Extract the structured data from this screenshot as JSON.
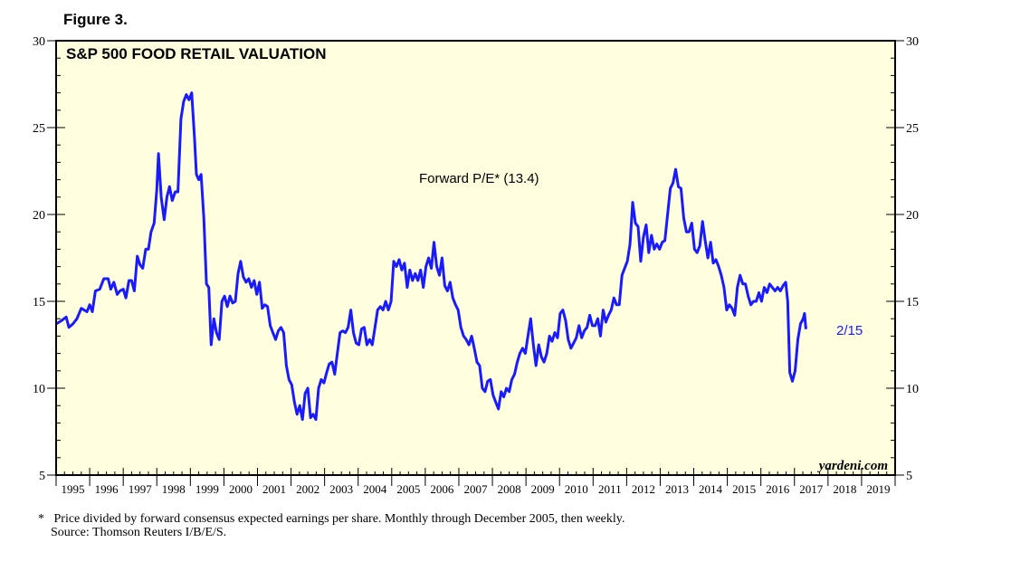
{
  "figure_label": "Figure 3.",
  "footnote": {
    "marker": "*",
    "line1": "Price divided by forward consensus expected earnings per share. Monthly through December 2005, then weekly.",
    "line2": "Source: Thomson Reuters I/B/E/S."
  },
  "chart_data": {
    "type": "line",
    "title": "S&P 500 FOOD RETAIL VALUATION",
    "watermark": "yardeni.com",
    "colors": {
      "plot_background": "#ffffe0",
      "line": "#1a1aff",
      "frame": "#000000"
    },
    "ylim": [
      5,
      30
    ],
    "xlim": [
      1995,
      2020
    ],
    "y_ticks": [
      "5",
      "10",
      "15",
      "20",
      "25",
      "30"
    ],
    "x_tick_labels": [
      "1995",
      "1996",
      "1997",
      "1998",
      "1999",
      "2000",
      "2001",
      "2002",
      "2003",
      "2004",
      "2005",
      "2006",
      "2007",
      "2008",
      "2009",
      "2010",
      "2011",
      "2012",
      "2013",
      "2014",
      "2015",
      "2016",
      "2017",
      "2018",
      "2019"
    ],
    "grid": false,
    "dual_y_axis": true,
    "series": [
      {
        "name": "Forward P/E* (13.4)",
        "end_label": "2/15",
        "points": [
          [
            1995.0,
            13.7
          ],
          [
            1995.17,
            13.9
          ],
          [
            1995.3,
            14.1
          ],
          [
            1995.38,
            13.5
          ],
          [
            1995.5,
            13.7
          ],
          [
            1995.62,
            14.0
          ],
          [
            1995.75,
            14.6
          ],
          [
            1995.92,
            14.4
          ],
          [
            1996.0,
            14.8
          ],
          [
            1996.08,
            14.4
          ],
          [
            1996.17,
            15.6
          ],
          [
            1996.3,
            15.7
          ],
          [
            1996.42,
            16.3
          ],
          [
            1996.55,
            16.3
          ],
          [
            1996.63,
            15.7
          ],
          [
            1996.72,
            16.1
          ],
          [
            1996.82,
            15.4
          ],
          [
            1996.9,
            15.6
          ],
          [
            1997.0,
            15.7
          ],
          [
            1997.08,
            15.2
          ],
          [
            1997.17,
            16.2
          ],
          [
            1997.25,
            16.2
          ],
          [
            1997.33,
            15.6
          ],
          [
            1997.42,
            17.6
          ],
          [
            1997.5,
            17.1
          ],
          [
            1997.58,
            16.9
          ],
          [
            1997.67,
            18.0
          ],
          [
            1997.75,
            18.0
          ],
          [
            1997.83,
            19.0
          ],
          [
            1997.92,
            19.5
          ],
          [
            1998.0,
            21.4
          ],
          [
            1998.05,
            23.5
          ],
          [
            1998.13,
            21.0
          ],
          [
            1998.22,
            19.7
          ],
          [
            1998.3,
            21.0
          ],
          [
            1998.38,
            21.6
          ],
          [
            1998.46,
            20.8
          ],
          [
            1998.55,
            21.3
          ],
          [
            1998.63,
            21.3
          ],
          [
            1998.72,
            25.5
          ],
          [
            1998.8,
            26.5
          ],
          [
            1998.88,
            26.9
          ],
          [
            1998.96,
            26.6
          ],
          [
            1999.04,
            27.0
          ],
          [
            1999.12,
            24.5
          ],
          [
            1999.18,
            22.3
          ],
          [
            1999.25,
            22.0
          ],
          [
            1999.32,
            22.3
          ],
          [
            1999.4,
            19.8
          ],
          [
            1999.48,
            16.0
          ],
          [
            1999.55,
            15.8
          ],
          [
            1999.62,
            12.5
          ],
          [
            1999.7,
            14.0
          ],
          [
            1999.78,
            13.2
          ],
          [
            1999.86,
            12.8
          ],
          [
            1999.94,
            15.0
          ],
          [
            2000.02,
            15.3
          ],
          [
            2000.1,
            14.7
          ],
          [
            2000.18,
            15.3
          ],
          [
            2000.26,
            14.9
          ],
          [
            2000.34,
            15.0
          ],
          [
            2000.42,
            16.6
          ],
          [
            2000.5,
            17.3
          ],
          [
            2000.58,
            16.4
          ],
          [
            2000.66,
            16.1
          ],
          [
            2000.74,
            16.3
          ],
          [
            2000.82,
            15.8
          ],
          [
            2000.9,
            16.2
          ],
          [
            2000.98,
            15.4
          ],
          [
            2001.06,
            16.1
          ],
          [
            2001.14,
            14.6
          ],
          [
            2001.22,
            14.8
          ],
          [
            2001.3,
            14.7
          ],
          [
            2001.38,
            13.6
          ],
          [
            2001.46,
            13.2
          ],
          [
            2001.54,
            12.8
          ],
          [
            2001.62,
            13.3
          ],
          [
            2001.7,
            13.5
          ],
          [
            2001.78,
            13.2
          ],
          [
            2001.86,
            11.3
          ],
          [
            2001.94,
            10.5
          ],
          [
            2002.02,
            10.2
          ],
          [
            2002.1,
            9.2
          ],
          [
            2002.18,
            8.5
          ],
          [
            2002.26,
            9.0
          ],
          [
            2002.34,
            8.2
          ],
          [
            2002.42,
            9.7
          ],
          [
            2002.5,
            10.0
          ],
          [
            2002.58,
            8.3
          ],
          [
            2002.66,
            8.5
          ],
          [
            2002.74,
            8.2
          ],
          [
            2002.82,
            10.0
          ],
          [
            2002.9,
            10.5
          ],
          [
            2002.98,
            10.3
          ],
          [
            2003.06,
            10.9
          ],
          [
            2003.14,
            11.4
          ],
          [
            2003.22,
            11.5
          ],
          [
            2003.3,
            10.8
          ],
          [
            2003.38,
            12.0
          ],
          [
            2003.46,
            13.2
          ],
          [
            2003.54,
            13.3
          ],
          [
            2003.62,
            13.2
          ],
          [
            2003.7,
            13.5
          ],
          [
            2003.78,
            14.5
          ],
          [
            2003.86,
            13.2
          ],
          [
            2003.94,
            12.6
          ],
          [
            2004.02,
            12.5
          ],
          [
            2004.1,
            13.4
          ],
          [
            2004.18,
            13.5
          ],
          [
            2004.26,
            12.5
          ],
          [
            2004.34,
            12.8
          ],
          [
            2004.42,
            12.5
          ],
          [
            2004.5,
            13.5
          ],
          [
            2004.58,
            14.5
          ],
          [
            2004.66,
            14.7
          ],
          [
            2004.74,
            14.5
          ],
          [
            2004.82,
            15.0
          ],
          [
            2004.9,
            14.5
          ],
          [
            2004.98,
            15.0
          ],
          [
            2005.06,
            17.3
          ],
          [
            2005.14,
            17.0
          ],
          [
            2005.22,
            17.4
          ],
          [
            2005.3,
            16.8
          ],
          [
            2005.38,
            17.2
          ],
          [
            2005.46,
            15.8
          ],
          [
            2005.54,
            16.8
          ],
          [
            2005.62,
            16.2
          ],
          [
            2005.7,
            16.6
          ],
          [
            2005.78,
            16.2
          ],
          [
            2005.86,
            16.8
          ],
          [
            2005.94,
            15.8
          ],
          [
            2006.02,
            17.0
          ],
          [
            2006.1,
            17.5
          ],
          [
            2006.18,
            16.9
          ],
          [
            2006.26,
            18.4
          ],
          [
            2006.34,
            17.0
          ],
          [
            2006.42,
            16.5
          ],
          [
            2006.5,
            17.5
          ],
          [
            2006.58,
            15.9
          ],
          [
            2006.66,
            15.6
          ],
          [
            2006.74,
            16.1
          ],
          [
            2006.82,
            15.2
          ],
          [
            2006.9,
            14.8
          ],
          [
            2006.98,
            14.5
          ],
          [
            2007.06,
            13.5
          ],
          [
            2007.14,
            13.0
          ],
          [
            2007.22,
            12.8
          ],
          [
            2007.3,
            12.5
          ],
          [
            2007.38,
            13.0
          ],
          [
            2007.46,
            12.3
          ],
          [
            2007.54,
            11.5
          ],
          [
            2007.62,
            11.3
          ],
          [
            2007.7,
            10.0
          ],
          [
            2007.78,
            9.8
          ],
          [
            2007.86,
            10.4
          ],
          [
            2007.94,
            10.5
          ],
          [
            2008.02,
            9.6
          ],
          [
            2008.1,
            9.2
          ],
          [
            2008.18,
            8.8
          ],
          [
            2008.26,
            9.8
          ],
          [
            2008.34,
            9.5
          ],
          [
            2008.42,
            10.0
          ],
          [
            2008.5,
            9.8
          ],
          [
            2008.58,
            10.5
          ],
          [
            2008.66,
            10.8
          ],
          [
            2008.74,
            11.5
          ],
          [
            2008.82,
            12.0
          ],
          [
            2008.9,
            12.3
          ],
          [
            2008.98,
            12.0
          ],
          [
            2009.06,
            13.0
          ],
          [
            2009.14,
            14.0
          ],
          [
            2009.22,
            12.5
          ],
          [
            2009.3,
            11.3
          ],
          [
            2009.38,
            12.5
          ],
          [
            2009.46,
            11.8
          ],
          [
            2009.54,
            11.5
          ],
          [
            2009.62,
            12.0
          ],
          [
            2009.7,
            13.0
          ],
          [
            2009.78,
            12.7
          ],
          [
            2009.86,
            13.2
          ],
          [
            2009.94,
            12.9
          ],
          [
            2010.02,
            14.3
          ],
          [
            2010.1,
            14.5
          ],
          [
            2010.18,
            13.9
          ],
          [
            2010.26,
            12.8
          ],
          [
            2010.34,
            12.3
          ],
          [
            2010.42,
            12.6
          ],
          [
            2010.5,
            12.9
          ],
          [
            2010.58,
            13.6
          ],
          [
            2010.66,
            12.9
          ],
          [
            2010.74,
            13.3
          ],
          [
            2010.82,
            13.5
          ],
          [
            2010.9,
            14.2
          ],
          [
            2010.98,
            13.6
          ],
          [
            2011.06,
            13.6
          ],
          [
            2011.14,
            14.0
          ],
          [
            2011.22,
            13.0
          ],
          [
            2011.3,
            14.5
          ],
          [
            2011.38,
            13.8
          ],
          [
            2011.46,
            14.2
          ],
          [
            2011.54,
            14.5
          ],
          [
            2011.62,
            15.2
          ],
          [
            2011.7,
            14.8
          ],
          [
            2011.78,
            14.8
          ],
          [
            2011.86,
            16.5
          ],
          [
            2011.94,
            16.9
          ],
          [
            2012.02,
            17.3
          ],
          [
            2012.1,
            18.3
          ],
          [
            2012.18,
            20.7
          ],
          [
            2012.26,
            19.5
          ],
          [
            2012.34,
            19.3
          ],
          [
            2012.42,
            17.3
          ],
          [
            2012.5,
            18.7
          ],
          [
            2012.58,
            19.4
          ],
          [
            2012.66,
            17.8
          ],
          [
            2012.74,
            18.8
          ],
          [
            2012.82,
            18.0
          ],
          [
            2012.9,
            18.3
          ],
          [
            2012.98,
            18.0
          ],
          [
            2013.06,
            18.4
          ],
          [
            2013.14,
            18.5
          ],
          [
            2013.22,
            20.0
          ],
          [
            2013.3,
            21.5
          ],
          [
            2013.38,
            21.8
          ],
          [
            2013.46,
            22.6
          ],
          [
            2013.54,
            21.6
          ],
          [
            2013.62,
            21.5
          ],
          [
            2013.7,
            19.8
          ],
          [
            2013.78,
            19.0
          ],
          [
            2013.86,
            19.0
          ],
          [
            2013.94,
            19.5
          ],
          [
            2014.02,
            18.0
          ],
          [
            2014.1,
            17.8
          ],
          [
            2014.18,
            18.2
          ],
          [
            2014.26,
            19.6
          ],
          [
            2014.34,
            18.5
          ],
          [
            2014.42,
            17.5
          ],
          [
            2014.5,
            18.4
          ],
          [
            2014.58,
            17.2
          ],
          [
            2014.66,
            17.4
          ],
          [
            2014.74,
            17.0
          ],
          [
            2014.82,
            16.5
          ],
          [
            2014.9,
            15.8
          ],
          [
            2014.98,
            14.5
          ],
          [
            2015.06,
            14.8
          ],
          [
            2015.14,
            14.6
          ],
          [
            2015.22,
            14.2
          ],
          [
            2015.3,
            15.8
          ],
          [
            2015.38,
            16.5
          ],
          [
            2015.46,
            16.0
          ],
          [
            2015.54,
            16.0
          ],
          [
            2015.62,
            15.3
          ],
          [
            2015.7,
            14.8
          ],
          [
            2015.78,
            15.0
          ],
          [
            2015.86,
            15.0
          ],
          [
            2015.94,
            15.5
          ],
          [
            2016.02,
            15.0
          ],
          [
            2016.1,
            15.8
          ],
          [
            2016.18,
            15.5
          ],
          [
            2016.26,
            16.0
          ],
          [
            2016.34,
            15.8
          ],
          [
            2016.42,
            15.6
          ],
          [
            2016.5,
            15.8
          ],
          [
            2016.58,
            15.6
          ],
          [
            2016.66,
            15.9
          ],
          [
            2016.74,
            16.1
          ],
          [
            2016.8,
            15.0
          ],
          [
            2016.86,
            10.9
          ],
          [
            2016.94,
            10.4
          ],
          [
            2017.02,
            11.0
          ],
          [
            2017.1,
            12.8
          ],
          [
            2017.18,
            13.7
          ],
          [
            2017.26,
            14.0
          ],
          [
            2017.3,
            14.3
          ],
          [
            2017.34,
            13.4
          ]
        ]
      }
    ]
  }
}
